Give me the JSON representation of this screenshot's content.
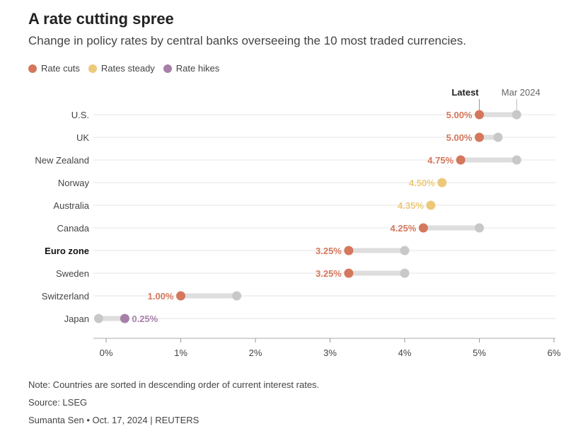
{
  "title": "A rate cutting spree",
  "subtitle": "Change in policy rates by central banks overseeing the 10 most traded currencies.",
  "legend": [
    {
      "label": "Rate cuts",
      "color": "#d4775c"
    },
    {
      "label": "Rates steady",
      "color": "#ecc97a"
    },
    {
      "label": "Rate hikes",
      "color": "#a680a8"
    }
  ],
  "colors": {
    "cut": "#d4775c",
    "steady": "#ecc97a",
    "hike": "#a680a8",
    "mar2024": "#c8c8c8",
    "connector": "#dedede",
    "grid": "#e6e6e6"
  },
  "chart_data": {
    "type": "dot-plot",
    "series_labels": {
      "latest": "Latest",
      "previous": "Mar 2024"
    },
    "xlim": [
      -0.1,
      6
    ],
    "x_ticks": [
      0,
      1,
      2,
      3,
      4,
      5,
      6
    ],
    "x_tick_labels": [
      "0%",
      "1%",
      "2%",
      "3%",
      "4%",
      "5%",
      "6%"
    ],
    "rows": [
      {
        "country": "U.S.",
        "latest": 5.0,
        "mar2024": 5.5,
        "status": "cut",
        "label": "5.00%",
        "bold": false
      },
      {
        "country": "UK",
        "latest": 5.0,
        "mar2024": 5.25,
        "status": "cut",
        "label": "5.00%",
        "bold": false
      },
      {
        "country": "New Zealand",
        "latest": 4.75,
        "mar2024": 5.5,
        "status": "cut",
        "label": "4.75%",
        "bold": false
      },
      {
        "country": "Norway",
        "latest": 4.5,
        "mar2024": 4.5,
        "status": "steady",
        "label": "4.50%",
        "bold": false
      },
      {
        "country": "Australia",
        "latest": 4.35,
        "mar2024": 4.35,
        "status": "steady",
        "label": "4.35%",
        "bold": false
      },
      {
        "country": "Canada",
        "latest": 4.25,
        "mar2024": 5.0,
        "status": "cut",
        "label": "4.25%",
        "bold": false
      },
      {
        "country": "Euro zone",
        "latest": 3.25,
        "mar2024": 4.0,
        "status": "cut",
        "label": "3.25%",
        "bold": true
      },
      {
        "country": "Sweden",
        "latest": 3.25,
        "mar2024": 4.0,
        "status": "cut",
        "label": "3.25%",
        "bold": false
      },
      {
        "country": "Switzerland",
        "latest": 1.0,
        "mar2024": 1.75,
        "status": "cut",
        "label": "1.00%",
        "bold": false
      },
      {
        "country": "Japan",
        "latest": 0.25,
        "mar2024": -0.1,
        "status": "hike",
        "label": "0.25%",
        "bold": false
      }
    ]
  },
  "footer": {
    "note": "Note: Countries are sorted in descending order of current interest rates.",
    "source": "Source: LSEG",
    "byline": "Sumanta Sen • Oct. 17, 2024 | REUTERS"
  }
}
